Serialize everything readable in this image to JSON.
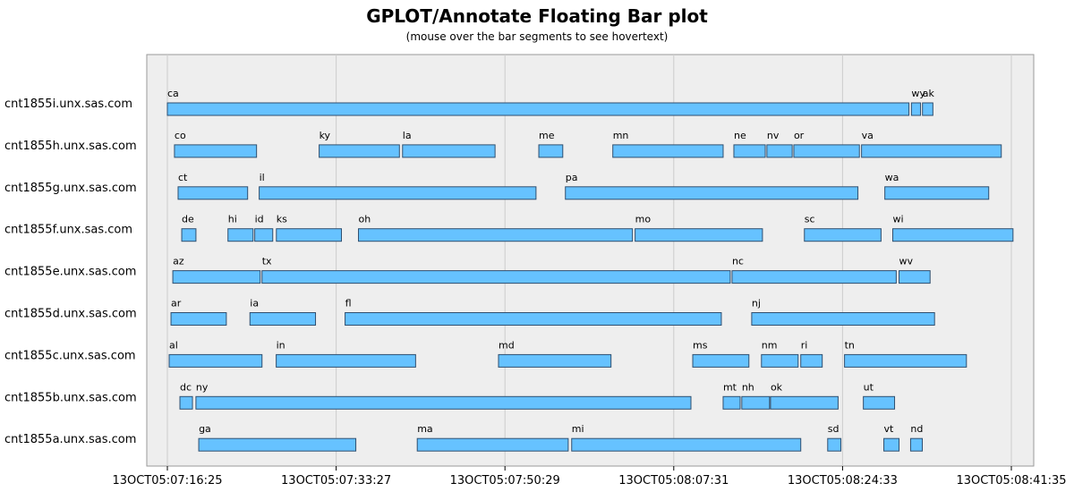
{
  "chart_data": {
    "type": "bar",
    "orientation": "horizontal-floating",
    "title": "GPLOT/Annotate Floating Bar plot",
    "subtitle": "(mouse over the bar segments to see hovertext)",
    "x_axis_unit": "seconds from 13OCT05:07:16:25",
    "x_ticks": [
      {
        "value": 0,
        "label": "13OCT05:07:16:25"
      },
      {
        "value": 1022,
        "label": "13OCT05:07:33:27"
      },
      {
        "value": 2044,
        "label": "13OCT05:07:50:29"
      },
      {
        "value": 3066,
        "label": "13OCT05:08:07:31"
      },
      {
        "value": 4088,
        "label": "13OCT05:08:24:33"
      },
      {
        "value": 5110,
        "label": "13OCT05:08:41:35"
      }
    ],
    "xlim": [
      -130,
      5250
    ],
    "grid": true,
    "categories": [
      {
        "label": "cnt1855i.unx.sas.com",
        "segments": [
          {
            "name": "ca",
            "start": 0,
            "end": 4490
          },
          {
            "name": "wy",
            "start": 4505,
            "end": 4560
          },
          {
            "name": "ak",
            "start": 4572,
            "end": 4635
          }
        ]
      },
      {
        "label": "cnt1855h.unx.sas.com",
        "segments": [
          {
            "name": "co",
            "start": 43,
            "end": 540
          },
          {
            "name": "ky",
            "start": 919,
            "end": 1405
          },
          {
            "name": "la",
            "start": 1424,
            "end": 1984
          },
          {
            "name": "me",
            "start": 2249,
            "end": 2394
          },
          {
            "name": "mn",
            "start": 2697,
            "end": 3365
          },
          {
            "name": "ne",
            "start": 3430,
            "end": 3620
          },
          {
            "name": "nv",
            "start": 3630,
            "end": 3783
          },
          {
            "name": "or",
            "start": 3793,
            "end": 4190
          },
          {
            "name": "va",
            "start": 4203,
            "end": 5049
          }
        ]
      },
      {
        "label": "cnt1855g.unx.sas.com",
        "segments": [
          {
            "name": "ct",
            "start": 65,
            "end": 486
          },
          {
            "name": "il",
            "start": 556,
            "end": 2232
          },
          {
            "name": "pa",
            "start": 2410,
            "end": 4181
          },
          {
            "name": "wa",
            "start": 4344,
            "end": 4973
          }
        ]
      },
      {
        "label": "cnt1855f.unx.sas.com",
        "segments": [
          {
            "name": "de",
            "start": 87,
            "end": 173
          },
          {
            "name": "hi",
            "start": 367,
            "end": 519
          },
          {
            "name": "id",
            "start": 529,
            "end": 638
          },
          {
            "name": "ks",
            "start": 660,
            "end": 1054
          },
          {
            "name": "oh",
            "start": 1157,
            "end": 2816
          },
          {
            "name": "mo",
            "start": 2832,
            "end": 3603
          },
          {
            "name": "sc",
            "start": 3857,
            "end": 4321
          },
          {
            "name": "wi",
            "start": 4392,
            "end": 5120
          }
        ]
      },
      {
        "label": "cnt1855e.unx.sas.com",
        "segments": [
          {
            "name": "az",
            "start": 33,
            "end": 562
          },
          {
            "name": "tx",
            "start": 573,
            "end": 3408
          },
          {
            "name": "nc",
            "start": 3419,
            "end": 4413
          },
          {
            "name": "wv",
            "start": 4430,
            "end": 4618
          }
        ]
      },
      {
        "label": "cnt1855d.unx.sas.com",
        "segments": [
          {
            "name": "ar",
            "start": 22,
            "end": 357
          },
          {
            "name": "ia",
            "start": 500,
            "end": 897
          },
          {
            "name": "fl",
            "start": 1076,
            "end": 3354
          },
          {
            "name": "nj",
            "start": 3538,
            "end": 4645
          }
        ]
      },
      {
        "label": "cnt1855c.unx.sas.com",
        "segments": [
          {
            "name": "al",
            "start": 11,
            "end": 573
          },
          {
            "name": "in",
            "start": 659,
            "end": 1503
          },
          {
            "name": "md",
            "start": 2005,
            "end": 2686
          },
          {
            "name": "ms",
            "start": 3181,
            "end": 3521
          },
          {
            "name": "nm",
            "start": 3597,
            "end": 3819
          },
          {
            "name": "ri",
            "start": 3835,
            "end": 3965
          },
          {
            "name": "tn",
            "start": 4100,
            "end": 4838
          }
        ]
      },
      {
        "label": "cnt1855b.unx.sas.com",
        "segments": [
          {
            "name": "dc",
            "start": 76,
            "end": 152
          },
          {
            "name": "ny",
            "start": 173,
            "end": 3170
          },
          {
            "name": "mt",
            "start": 3365,
            "end": 3468
          },
          {
            "name": "nh",
            "start": 3478,
            "end": 3646
          },
          {
            "name": "ok",
            "start": 3652,
            "end": 4061
          },
          {
            "name": "ut",
            "start": 4214,
            "end": 4403
          }
        ]
      },
      {
        "label": "cnt1855a.unx.sas.com",
        "segments": [
          {
            "name": "ga",
            "start": 190,
            "end": 1141
          },
          {
            "name": "ma",
            "start": 1513,
            "end": 2427
          },
          {
            "name": "mi",
            "start": 2448,
            "end": 3835
          },
          {
            "name": "sd",
            "start": 3998,
            "end": 4078
          },
          {
            "name": "vt",
            "start": 4338,
            "end": 4430
          },
          {
            "name": "nd",
            "start": 4500,
            "end": 4571
          }
        ]
      }
    ]
  },
  "colors": {
    "bar_fill": "#66c2ff",
    "bar_stroke": "#2f4f6f",
    "plot_background": "#eeeeee",
    "grid": "#cccccc",
    "frame": "#999999"
  }
}
